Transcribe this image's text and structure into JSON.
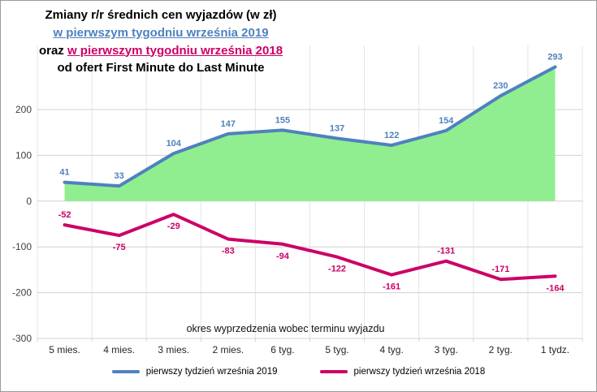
{
  "title": {
    "line1": "Zmiany r/r średnich cen wyjazdów (w zł)",
    "line2": "w pierwszym tygodniu września 2019",
    "line3_prefix": "oraz ",
    "line3_highlight": "w pierwszym tygodniu września 2018",
    "line4": "od ofert First Minute do Last Minute"
  },
  "colors": {
    "series_2019": "#4f81bd",
    "series_2018": "#cc0066",
    "area_fill": "#90ee90",
    "grid": "#d0d0d0",
    "grid_light": "#e4e4e4",
    "axis_text": "#404040"
  },
  "chart_data": {
    "type": "line",
    "title": "Zmiany r/r średnich cen wyjazdów (w zł) w pierwszym tygodniu września 2019 oraz w pierwszym tygodniu września 2018 od ofert First Minute do Last Minute",
    "categories": [
      "5 mies.",
      "4 mies.",
      "3 mies.",
      "2 mies.",
      "6 tyg.",
      "5 tyg.",
      "4 tyg.",
      "3 tyg.",
      "2 tyg.",
      "1 tydz."
    ],
    "series": [
      {
        "name": "pierwszy tydzień września 2019",
        "values": [
          41,
          33,
          104,
          147,
          155,
          137,
          122,
          154,
          230,
          293
        ],
        "color": "#4f81bd",
        "area": true,
        "label_positions": [
          "above",
          "above",
          "above",
          "above",
          "above",
          "above",
          "above",
          "above",
          "above",
          "above"
        ]
      },
      {
        "name": "pierwszy tydzień września 2018",
        "values": [
          -52,
          -75,
          -29,
          -83,
          -94,
          -122,
          -161,
          -131,
          -171,
          -164
        ],
        "color": "#cc0066",
        "area": false,
        "label_positions": [
          "above",
          "below",
          "below",
          "below",
          "below",
          "below",
          "below",
          "above",
          "above",
          "below"
        ]
      }
    ],
    "xlabel": "okres wyprzedzenia wobec terminu wyjazdu",
    "ylim": [
      -300,
      340
    ],
    "yticks": [
      200,
      100,
      0,
      -100,
      -200,
      -300
    ],
    "grid": true,
    "legend_position": "bottom"
  }
}
